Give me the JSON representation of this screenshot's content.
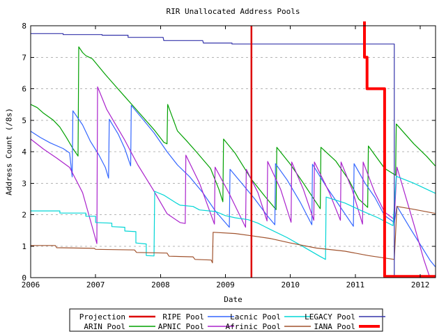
{
  "chart_data": {
    "type": "line",
    "title": "RIR Unallocated Address Pools",
    "xlabel": "Date",
    "ylabel": "Address Count (/8s)",
    "x_range": [
      2006,
      2012.235
    ],
    "y_range": [
      0,
      8
    ],
    "x_ticks": [
      2006,
      2007,
      2008,
      2009,
      2010,
      2011,
      2012
    ],
    "y_ticks": [
      0,
      1,
      2,
      3,
      4,
      5,
      6,
      7,
      8
    ],
    "grid": {
      "horizontal": true,
      "vertical": false,
      "color": "#b4b4b4"
    },
    "legend": {
      "position": "bottom-center",
      "rows": [
        [
          "Projection",
          "RIPE Pool",
          "Lacnic Pool",
          "LEGACY Pool"
        ],
        [
          "ARIN Pool",
          "APNIC Pool",
          "Afrinic Pool",
          "IANA Pool"
        ]
      ]
    },
    "series": [
      {
        "name": "Projection",
        "color": "#dd0000",
        "width": 2.5,
        "points": [
          [
            2009.4,
            0
          ],
          [
            2009.4,
            8
          ]
        ]
      },
      {
        "name": "RIPE Pool",
        "color": "#3366ff",
        "width": 1.2,
        "points": [
          [
            2006.0,
            4.65
          ],
          [
            2006.15,
            4.45
          ],
          [
            2006.3,
            4.28
          ],
          [
            2006.5,
            4.1
          ],
          [
            2006.6,
            3.96
          ],
          [
            2006.64,
            3.2
          ],
          [
            2006.65,
            5.3
          ],
          [
            2006.8,
            4.85
          ],
          [
            2006.92,
            4.33
          ],
          [
            2007.05,
            3.9
          ],
          [
            2007.15,
            3.5
          ],
          [
            2007.2,
            3.16
          ],
          [
            2007.21,
            5.03
          ],
          [
            2007.35,
            4.55
          ],
          [
            2007.45,
            4.1
          ],
          [
            2007.54,
            3.55
          ],
          [
            2007.55,
            5.47
          ],
          [
            2007.7,
            5.1
          ],
          [
            2007.9,
            4.6
          ],
          [
            2008.1,
            4.0
          ],
          [
            2008.26,
            3.58
          ],
          [
            2008.45,
            3.2
          ],
          [
            2008.65,
            2.7
          ],
          [
            2008.85,
            2.1
          ],
          [
            2009.06,
            1.6
          ],
          [
            2009.07,
            3.44
          ],
          [
            2009.25,
            3.0
          ],
          [
            2009.45,
            2.5
          ],
          [
            2009.65,
            1.95
          ],
          [
            2009.76,
            1.68
          ],
          [
            2009.77,
            3.62
          ],
          [
            2009.95,
            3.1
          ],
          [
            2010.15,
            2.4
          ],
          [
            2010.33,
            1.68
          ],
          [
            2010.34,
            3.6
          ],
          [
            2010.55,
            2.9
          ],
          [
            2010.75,
            2.3
          ],
          [
            2010.97,
            1.63
          ],
          [
            2010.98,
            3.62
          ],
          [
            2011.15,
            3.0
          ],
          [
            2011.3,
            2.55
          ],
          [
            2011.45,
            1.97
          ],
          [
            2011.6,
            1.75
          ],
          [
            2011.64,
            2.27
          ],
          [
            2011.85,
            1.55
          ],
          [
            2012.0,
            1.05
          ],
          [
            2012.15,
            0.55
          ],
          [
            2012.23,
            0.35
          ]
        ]
      },
      {
        "name": "Lacnic Pool",
        "color": "#00d5d5",
        "width": 1.2,
        "points": [
          [
            2006.0,
            2.12
          ],
          [
            2006.45,
            2.12
          ],
          [
            2006.45,
            2.05
          ],
          [
            2006.85,
            2.05
          ],
          [
            2006.85,
            1.95
          ],
          [
            2007.0,
            1.95
          ],
          [
            2007.0,
            1.75
          ],
          [
            2007.25,
            1.73
          ],
          [
            2007.25,
            1.62
          ],
          [
            2007.45,
            1.6
          ],
          [
            2007.45,
            1.48
          ],
          [
            2007.62,
            1.46
          ],
          [
            2007.62,
            1.1
          ],
          [
            2007.78,
            1.07
          ],
          [
            2007.78,
            0.7
          ],
          [
            2007.9,
            0.69
          ],
          [
            2007.91,
            2.74
          ],
          [
            2008.05,
            2.62
          ],
          [
            2008.25,
            2.36
          ],
          [
            2008.3,
            2.3
          ],
          [
            2008.5,
            2.26
          ],
          [
            2008.6,
            2.15
          ],
          [
            2008.85,
            2.1
          ],
          [
            2009.0,
            1.97
          ],
          [
            2009.15,
            1.9
          ],
          [
            2009.35,
            1.84
          ],
          [
            2009.5,
            1.73
          ],
          [
            2009.7,
            1.52
          ],
          [
            2009.95,
            1.27
          ],
          [
            2010.2,
            0.98
          ],
          [
            2010.45,
            0.68
          ],
          [
            2010.54,
            0.58
          ],
          [
            2010.55,
            2.56
          ],
          [
            2010.84,
            2.37
          ],
          [
            2011.1,
            2.12
          ],
          [
            2011.35,
            1.9
          ],
          [
            2011.58,
            1.65
          ],
          [
            2011.63,
            3.22
          ],
          [
            2011.9,
            3.0
          ],
          [
            2012.23,
            2.68
          ]
        ]
      },
      {
        "name": "LEGACY Pool",
        "color": "#3333aa",
        "width": 1.2,
        "points": [
          [
            2006.0,
            7.75
          ],
          [
            2006.5,
            7.75
          ],
          [
            2006.5,
            7.72
          ],
          [
            2007.1,
            7.72
          ],
          [
            2007.1,
            7.7
          ],
          [
            2007.5,
            7.7
          ],
          [
            2007.5,
            7.63
          ],
          [
            2008.04,
            7.63
          ],
          [
            2008.05,
            7.53
          ],
          [
            2008.65,
            7.53
          ],
          [
            2008.66,
            7.45
          ],
          [
            2009.1,
            7.45
          ],
          [
            2009.1,
            7.42
          ],
          [
            2011.6,
            7.42
          ],
          [
            2011.6,
            0.02
          ]
        ]
      },
      {
        "name": "ARIN Pool",
        "color": "#00a000",
        "width": 1.2,
        "points": [
          [
            2006.0,
            5.5
          ],
          [
            2006.1,
            5.4
          ],
          [
            2006.2,
            5.22
          ],
          [
            2006.35,
            5.0
          ],
          [
            2006.45,
            4.78
          ],
          [
            2006.55,
            4.45
          ],
          [
            2006.65,
            4.1
          ],
          [
            2006.73,
            3.86
          ],
          [
            2006.74,
            7.33
          ],
          [
            2006.8,
            7.15
          ],
          [
            2006.85,
            7.05
          ],
          [
            2006.95,
            6.95
          ],
          [
            2007.05,
            6.7
          ],
          [
            2007.15,
            6.45
          ],
          [
            2007.3,
            6.1
          ],
          [
            2007.45,
            5.75
          ],
          [
            2007.6,
            5.4
          ],
          [
            2007.75,
            5.05
          ],
          [
            2007.9,
            4.7
          ],
          [
            2008.05,
            4.3
          ],
          [
            2008.1,
            4.25
          ],
          [
            2008.11,
            5.5
          ],
          [
            2008.26,
            4.66
          ],
          [
            2008.4,
            4.35
          ],
          [
            2008.55,
            4.0
          ],
          [
            2008.77,
            3.47
          ],
          [
            2008.9,
            2.8
          ],
          [
            2008.96,
            2.41
          ],
          [
            2008.97,
            4.4
          ],
          [
            2009.15,
            3.95
          ],
          [
            2009.4,
            3.12
          ],
          [
            2009.6,
            2.6
          ],
          [
            2009.78,
            2.16
          ],
          [
            2009.79,
            4.14
          ],
          [
            2010.0,
            3.6
          ],
          [
            2010.2,
            3.0
          ],
          [
            2010.46,
            2.19
          ],
          [
            2010.47,
            4.14
          ],
          [
            2010.7,
            3.7
          ],
          [
            2010.9,
            3.1
          ],
          [
            2011.05,
            2.5
          ],
          [
            2011.19,
            2.23
          ],
          [
            2011.2,
            4.18
          ],
          [
            2011.45,
            3.47
          ],
          [
            2011.62,
            3.25
          ],
          [
            2011.63,
            4.88
          ],
          [
            2011.9,
            4.25
          ],
          [
            2012.1,
            3.85
          ],
          [
            2012.23,
            3.55
          ]
        ]
      },
      {
        "name": "APNIC Pool",
        "color": "#aa22cc",
        "width": 1.2,
        "points": [
          [
            2006.0,
            4.4
          ],
          [
            2006.2,
            4.08
          ],
          [
            2006.4,
            3.8
          ],
          [
            2006.6,
            3.5
          ],
          [
            2006.8,
            2.7
          ],
          [
            2006.95,
            1.6
          ],
          [
            2007.02,
            1.08
          ],
          [
            2007.03,
            6.06
          ],
          [
            2007.17,
            5.35
          ],
          [
            2007.44,
            4.4
          ],
          [
            2007.65,
            3.58
          ],
          [
            2007.89,
            2.78
          ],
          [
            2008.1,
            2.03
          ],
          [
            2008.3,
            1.75
          ],
          [
            2008.38,
            1.72
          ],
          [
            2008.39,
            3.89
          ],
          [
            2008.6,
            3.0
          ],
          [
            2008.83,
            1.7
          ],
          [
            2008.84,
            3.51
          ],
          [
            2009.05,
            2.7
          ],
          [
            2009.31,
            1.6
          ],
          [
            2009.32,
            3.44
          ],
          [
            2009.5,
            2.7
          ],
          [
            2009.64,
            1.8
          ],
          [
            2009.65,
            3.69
          ],
          [
            2009.85,
            2.8
          ],
          [
            2010.01,
            1.76
          ],
          [
            2010.02,
            3.67
          ],
          [
            2010.2,
            2.8
          ],
          [
            2010.36,
            1.82
          ],
          [
            2010.37,
            3.67
          ],
          [
            2010.6,
            2.7
          ],
          [
            2010.77,
            1.82
          ],
          [
            2010.78,
            3.67
          ],
          [
            2010.95,
            2.8
          ],
          [
            2011.11,
            1.7
          ],
          [
            2011.12,
            3.67
          ],
          [
            2011.3,
            2.7
          ],
          [
            2011.45,
            2.08
          ],
          [
            2011.6,
            1.85
          ],
          [
            2011.64,
            3.51
          ],
          [
            2011.9,
            1.7
          ],
          [
            2012.05,
            0.6
          ],
          [
            2012.14,
            0.05
          ]
        ]
      },
      {
        "name": "Afrinic Pool",
        "color": "#a0522d",
        "width": 1.2,
        "points": [
          [
            2006.0,
            1.02
          ],
          [
            2006.38,
            1.02
          ],
          [
            2006.4,
            0.95
          ],
          [
            2006.98,
            0.93
          ],
          [
            2007.0,
            0.9
          ],
          [
            2007.6,
            0.88
          ],
          [
            2007.63,
            0.8
          ],
          [
            2008.1,
            0.78
          ],
          [
            2008.13,
            0.68
          ],
          [
            2008.5,
            0.66
          ],
          [
            2008.53,
            0.58
          ],
          [
            2008.78,
            0.56
          ],
          [
            2008.8,
            0.47
          ],
          [
            2008.81,
            1.44
          ],
          [
            2009.15,
            1.4
          ],
          [
            2009.4,
            1.33
          ],
          [
            2009.7,
            1.24
          ],
          [
            2010.0,
            1.1
          ],
          [
            2010.4,
            0.94
          ],
          [
            2010.84,
            0.84
          ],
          [
            2011.2,
            0.7
          ],
          [
            2011.6,
            0.58
          ],
          [
            2011.64,
            2.26
          ],
          [
            2011.9,
            2.17
          ],
          [
            2012.23,
            2.04
          ]
        ]
      },
      {
        "name": "IANA Pool",
        "color": "#ff0000",
        "width": 4,
        "points": [
          [
            2011.14,
            8.14
          ],
          [
            2011.14,
            7.0
          ],
          [
            2011.18,
            7.0
          ],
          [
            2011.18,
            6.0
          ],
          [
            2011.45,
            6.0
          ],
          [
            2011.45,
            0.04
          ],
          [
            2012.235,
            0.04
          ]
        ]
      }
    ]
  }
}
